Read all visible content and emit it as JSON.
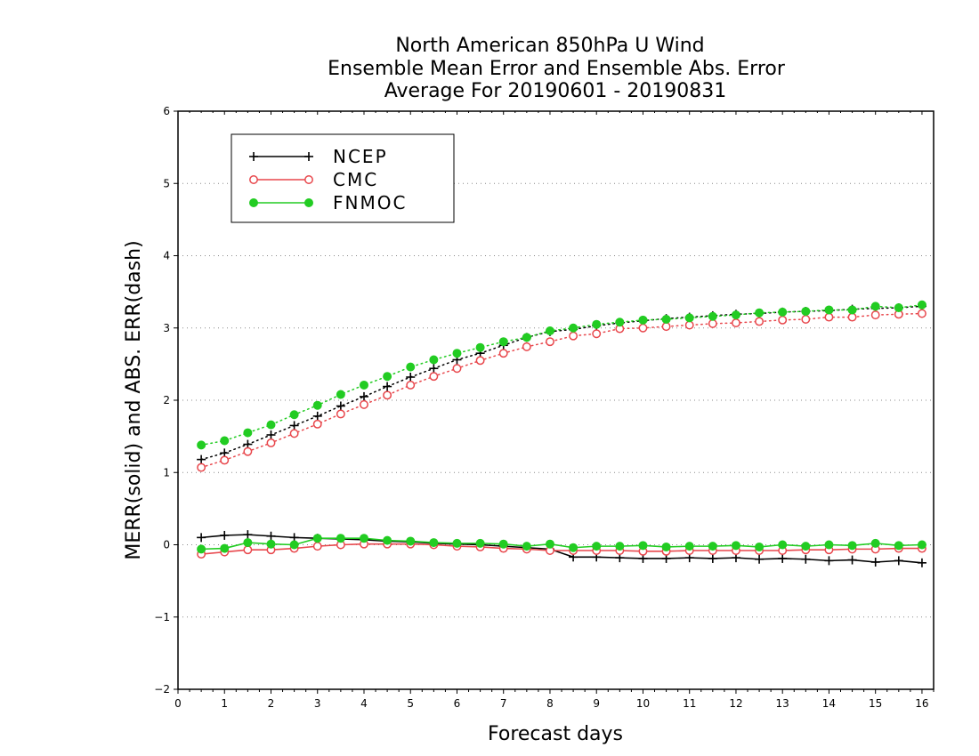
{
  "chart_data": {
    "type": "line",
    "title_lines": [
      "North American 850hPa U Wind",
      "Ensemble Mean Error and Ensemble Abs. Error",
      "Average For 20190601 - 20190831"
    ],
    "xlabel": "Forecast days",
    "ylabel": "MERR(solid) and ABS. ERR(dash)",
    "xlim": [
      0,
      16.25
    ],
    "ylim": [
      -2,
      6
    ],
    "x_ticks": [
      "0",
      "1",
      "2",
      "3",
      "4",
      "5",
      "6",
      "7",
      "8",
      "9",
      "10",
      "11",
      "12",
      "13",
      "14",
      "15",
      "16"
    ],
    "y_ticks": [
      "-2",
      "-1",
      "0",
      "1",
      "2",
      "3",
      "4",
      "5",
      "6"
    ],
    "grid": "horizontal dotted",
    "legend_position": "top-left",
    "x": [
      0.5,
      1,
      1.5,
      2,
      2.5,
      3,
      3.5,
      4,
      4.5,
      5,
      5.5,
      6,
      6.5,
      7,
      7.5,
      8,
      8.5,
      9,
      9.5,
      10,
      10.5,
      11,
      11.5,
      12,
      12.5,
      13,
      13.5,
      14,
      14.5,
      15,
      15.5,
      16
    ],
    "series": [
      {
        "name": "NCEP",
        "color": "#000000",
        "marker": "plus",
        "merr": [
          0.1,
          0.13,
          0.14,
          0.12,
          0.1,
          0.09,
          0.08,
          0.07,
          0.05,
          0.04,
          0.02,
          0.01,
          0.0,
          -0.02,
          -0.04,
          -0.06,
          -0.17,
          -0.17,
          -0.18,
          -0.19,
          -0.19,
          -0.18,
          -0.19,
          -0.18,
          -0.2,
          -0.19,
          -0.2,
          -0.22,
          -0.21,
          -0.24,
          -0.22,
          -0.25
        ],
        "abs_err": [
          1.18,
          1.27,
          1.39,
          1.52,
          1.65,
          1.78,
          1.92,
          2.05,
          2.19,
          2.32,
          2.44,
          2.56,
          2.65,
          2.76,
          2.87,
          2.95,
          2.98,
          3.03,
          3.07,
          3.1,
          3.13,
          3.15,
          3.17,
          3.19,
          3.2,
          3.22,
          3.23,
          3.24,
          3.26,
          3.27,
          3.28,
          3.3
        ]
      },
      {
        "name": "CMC",
        "color": "#e8474c",
        "marker": "open-circle",
        "merr": [
          -0.13,
          -0.1,
          -0.07,
          -0.07,
          -0.05,
          -0.02,
          0.0,
          0.01,
          0.01,
          0.01,
          0.0,
          -0.02,
          -0.03,
          -0.05,
          -0.06,
          -0.08,
          -0.08,
          -0.08,
          -0.08,
          -0.09,
          -0.09,
          -0.08,
          -0.08,
          -0.08,
          -0.08,
          -0.08,
          -0.07,
          -0.07,
          -0.06,
          -0.06,
          -0.05,
          -0.05
        ],
        "abs_err": [
          1.07,
          1.17,
          1.29,
          1.41,
          1.54,
          1.67,
          1.81,
          1.94,
          2.07,
          2.21,
          2.33,
          2.44,
          2.55,
          2.65,
          2.74,
          2.81,
          2.89,
          2.92,
          2.99,
          3.0,
          3.02,
          3.04,
          3.06,
          3.07,
          3.09,
          3.11,
          3.12,
          3.15,
          3.15,
          3.18,
          3.19,
          3.2
        ]
      },
      {
        "name": "FNMOC",
        "color": "#22cc22",
        "marker": "filled-circle",
        "merr": [
          -0.06,
          -0.05,
          0.03,
          0.01,
          0.0,
          0.09,
          0.09,
          0.09,
          0.06,
          0.05,
          0.03,
          0.02,
          0.02,
          0.01,
          -0.02,
          0.01,
          -0.04,
          -0.02,
          -0.02,
          -0.01,
          -0.03,
          -0.02,
          -0.02,
          -0.01,
          -0.03,
          0.0,
          -0.02,
          0.0,
          -0.01,
          0.02,
          -0.01,
          0.0
        ],
        "abs_err": [
          1.38,
          1.44,
          1.55,
          1.66,
          1.8,
          1.93,
          2.08,
          2.21,
          2.33,
          2.46,
          2.56,
          2.65,
          2.73,
          2.81,
          2.87,
          2.96,
          3.0,
          3.05,
          3.08,
          3.11,
          3.12,
          3.14,
          3.16,
          3.18,
          3.21,
          3.22,
          3.23,
          3.25,
          3.25,
          3.3,
          3.28,
          3.32
        ]
      }
    ]
  }
}
